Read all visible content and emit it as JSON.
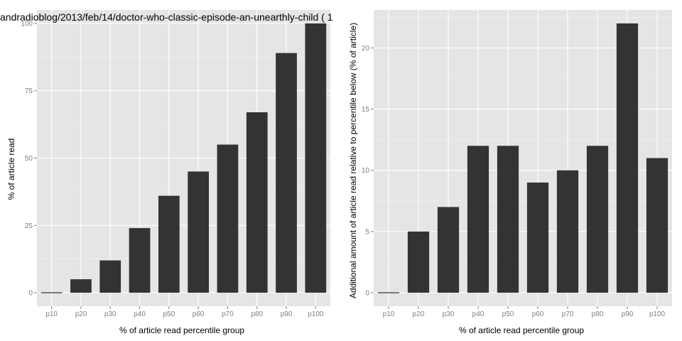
{
  "chart_data": [
    {
      "type": "bar",
      "title": "andradioblog/2013/feb/14/doctor-who-classic-episode-an-unearthly-child ( 1",
      "xlabel": "% of article read percentile group",
      "ylabel": "% of article read",
      "categories": [
        "p10",
        "p20",
        "p30",
        "p40",
        "p50",
        "p60",
        "p70",
        "p80",
        "p90",
        "p100"
      ],
      "values": [
        0,
        5,
        12,
        24,
        36,
        45,
        55,
        67,
        89,
        100
      ],
      "ylim": [
        -5,
        105
      ],
      "yticks": [
        0,
        25,
        50,
        75,
        100
      ],
      "grid": true
    },
    {
      "type": "bar",
      "title": "",
      "xlabel": "% of article read percentile group",
      "ylabel": "Additional amount of article read relative to percentile below (% of article)",
      "categories": [
        "p10",
        "p20",
        "p30",
        "p40",
        "p50",
        "p60",
        "p70",
        "p80",
        "p90",
        "p100"
      ],
      "values": [
        0,
        5,
        7,
        12,
        12,
        9,
        10,
        12,
        22,
        11
      ],
      "ylim": [
        -1.1,
        23.1
      ],
      "yticks": [
        0,
        5,
        10,
        15,
        20
      ],
      "grid": true
    }
  ],
  "colors": {
    "panel_background": "#e5e5e5",
    "bar_fill": "#333333",
    "grid": "#ffffff",
    "tick_text": "#7f7f7f"
  }
}
